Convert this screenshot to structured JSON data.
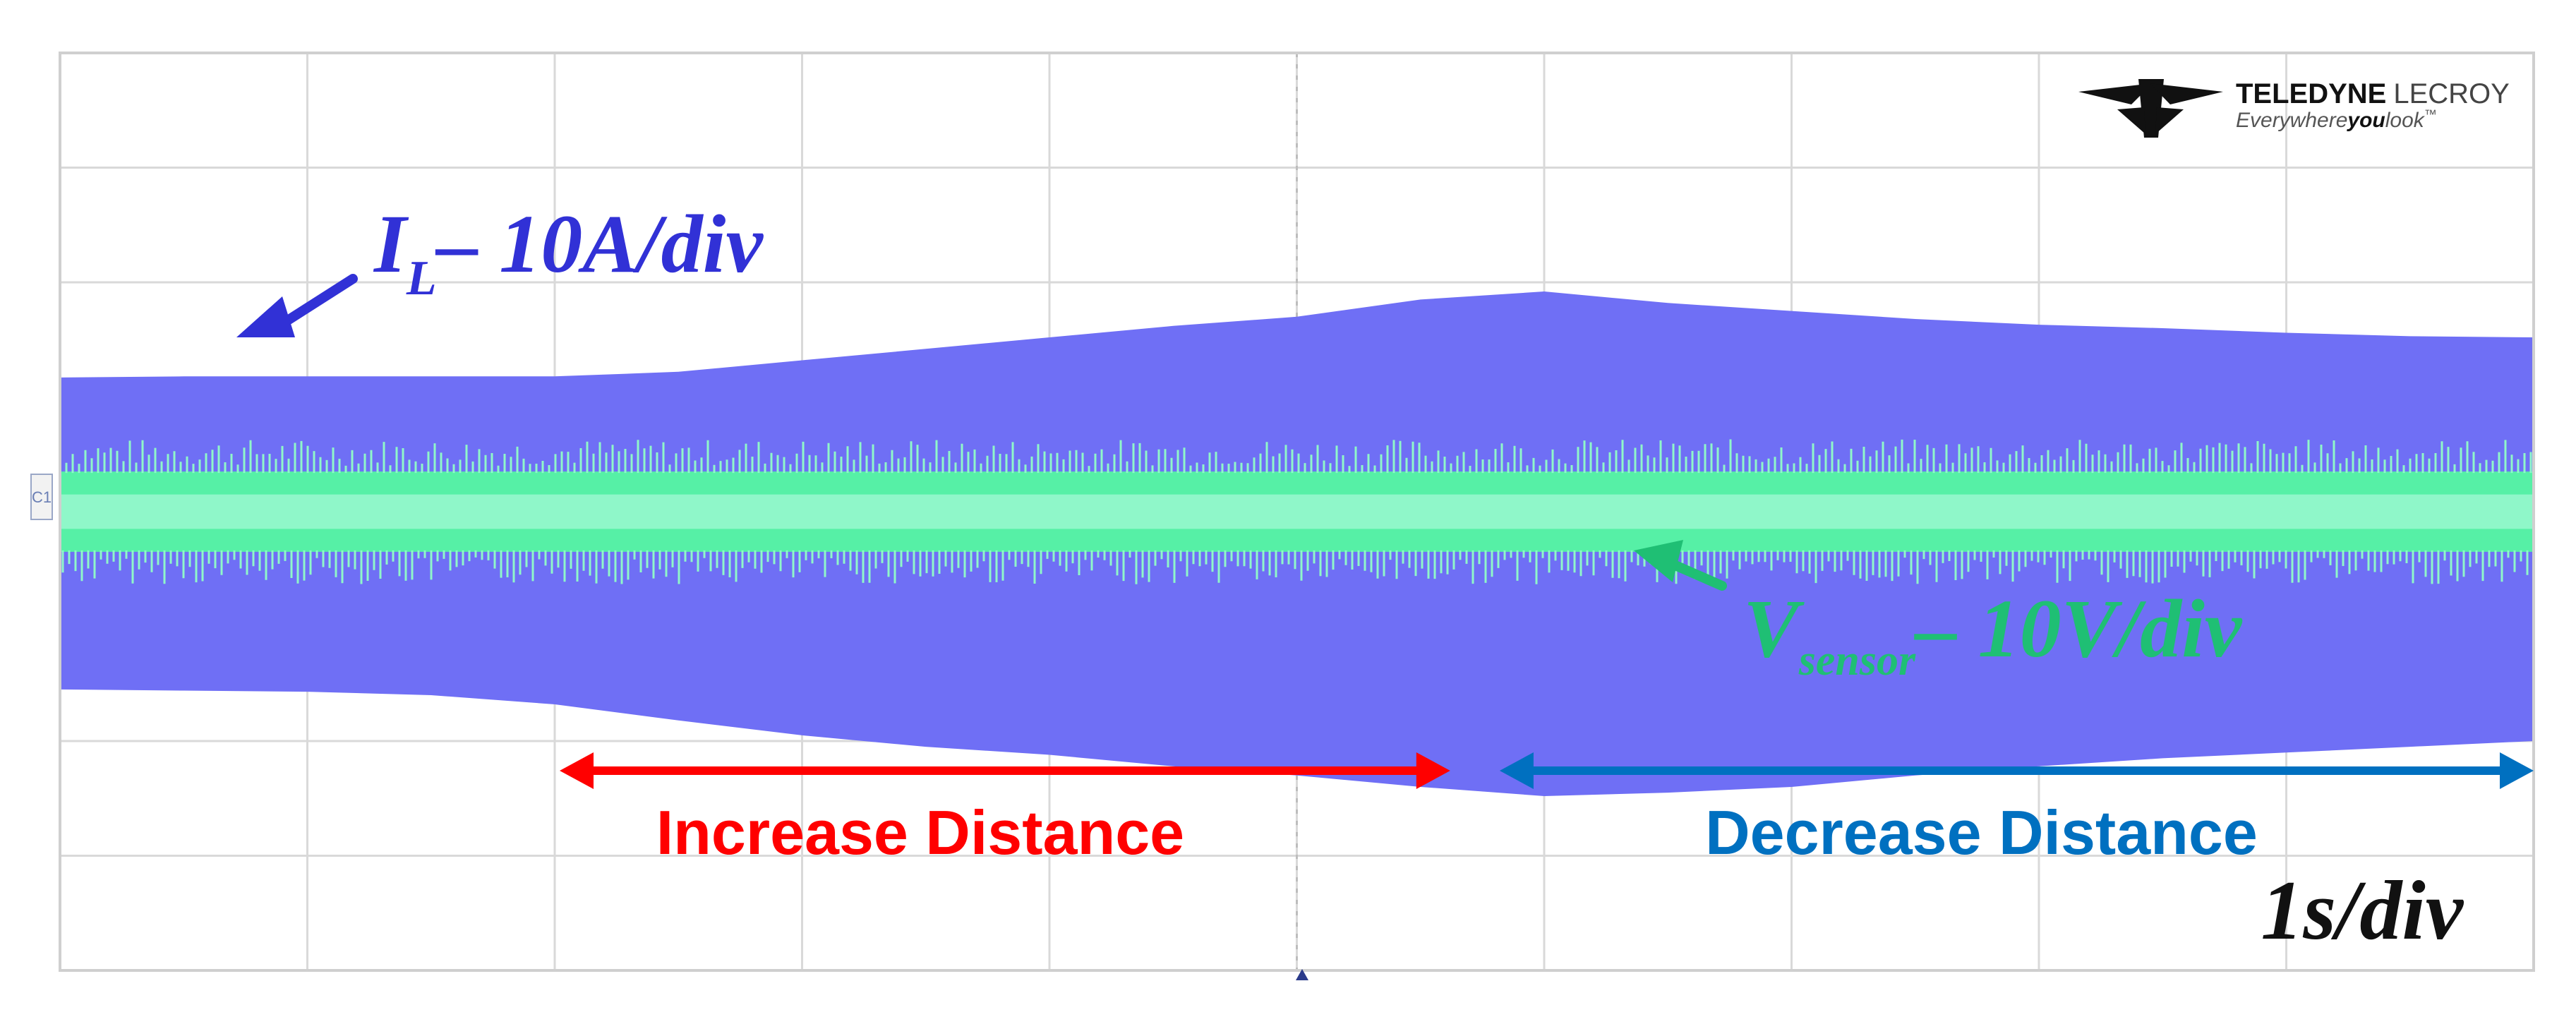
{
  "logo": {
    "brand_bold": "TELEDYNE",
    "brand_light": "LECROY",
    "tagline_a": "Everywhere",
    "tagline_b": "you",
    "tagline_c": "look",
    "tagline_tm": "™"
  },
  "channel_marker": "C1",
  "colors": {
    "il_trace": "#6f6ff5",
    "vsensor_trace": "#56f0a6",
    "vsensor_noise": "#8ff7c9",
    "il_label": "#3131d6",
    "vsensor_label": "#1fbf74",
    "increase": "#ff0000",
    "decrease": "#0070c0",
    "grid": "#d9d9d9",
    "timebase": "#111111"
  },
  "chart_data": {
    "type": "line",
    "title": "",
    "xlabel": "",
    "ylabel": "",
    "grid": true,
    "divisions": {
      "x": 10,
      "y": 8
    },
    "xlim": [
      0,
      10
    ],
    "ylim": [
      -4,
      4
    ],
    "time_unit": "s",
    "series": [
      {
        "name": "I_L",
        "label_main": "I",
        "label_sub": "L",
        "label_scale": "– 10A/div",
        "envelope_x": [
          0,
          0.5,
          1,
          1.5,
          2,
          2.5,
          3,
          3.5,
          4,
          4.5,
          5,
          5.5,
          6,
          6.5,
          7,
          7.5,
          8,
          8.5,
          9,
          9.5,
          10
        ],
        "envelope_upper": [
          1.17,
          1.18,
          1.18,
          1.18,
          1.18,
          1.22,
          1.32,
          1.42,
          1.52,
          1.62,
          1.7,
          1.85,
          1.92,
          1.82,
          1.75,
          1.68,
          1.63,
          1.6,
          1.56,
          1.53,
          1.52
        ],
        "envelope_lower": [
          -1.55,
          -1.56,
          -1.57,
          -1.6,
          -1.68,
          -1.82,
          -1.95,
          -2.05,
          -2.12,
          -2.22,
          -2.3,
          -2.4,
          -2.48,
          -2.45,
          -2.4,
          -2.3,
          -2.22,
          -2.15,
          -2.1,
          -2.05,
          -2.0
        ]
      },
      {
        "name": "V_sensor",
        "label_main": "V",
        "label_sub": "sensor",
        "label_scale": "– 10V/div",
        "envelope_x": [
          0,
          10
        ],
        "envelope_upper": [
          0.35,
          0.35
        ],
        "envelope_lower": [
          -0.35,
          -0.35
        ],
        "band_upper": [
          0.15,
          0.15
        ],
        "band_lower": [
          -0.15,
          -0.15
        ]
      }
    ],
    "annotations": [
      {
        "text": "Increase Distance",
        "x_start": 2.02,
        "x_end": 5.62
      },
      {
        "text": "Decrease Distance",
        "x_start": 5.82,
        "x_end": 10.0
      }
    ],
    "timebase_label": "1s/div"
  }
}
